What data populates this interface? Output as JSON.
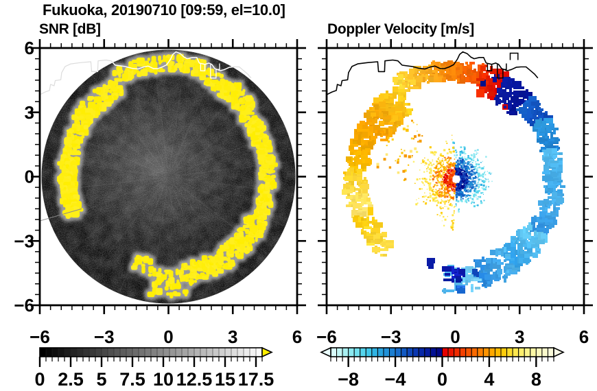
{
  "header": {
    "title": "Fukuoka, 20190710 [09:59, el=10.0]"
  },
  "panels": [
    {
      "key": "snr",
      "subtitle": "SNR [dB]"
    },
    {
      "key": "vel",
      "subtitle": "Doppler Velocity [m/s]"
    }
  ],
  "axes": {
    "range": [
      -6,
      6
    ],
    "major_ticks": [
      -6,
      -3,
      0,
      3,
      6
    ],
    "major_labels": [
      "−6",
      "−3",
      "0",
      "3",
      "6"
    ],
    "minor_step": 0.5
  },
  "chart_data": [
    {
      "type": "heatmap",
      "kind": "radar_ppi_snr",
      "title": "SNR [dB]",
      "site": "Fukuoka",
      "date": "20190710",
      "time": "09:59",
      "elevation_deg": 10.0,
      "axis_range_km": [
        -6,
        6
      ],
      "scan_radius": 5.92,
      "background_color": "#000000",
      "echo_color": "#ffee00",
      "colorbar": {
        "min": 0,
        "max": 18,
        "cell_step": 0.5,
        "tick_values": [
          0,
          2.5,
          5,
          7.5,
          10,
          12.5,
          15,
          17.5
        ],
        "tick_labels": [
          "0",
          "2.5",
          "5",
          "7.5",
          "10",
          "12.5",
          "15",
          "17.5"
        ],
        "gradient": [
          "#000000",
          "#fafafa"
        ],
        "over_color": "#ffee00"
      },
      "ring_segments": [
        {
          "a0": 150,
          "a1": 203,
          "r0": 4.35,
          "r1": 5.05,
          "d": 1.15
        },
        {
          "a0": 118,
          "a1": 150,
          "r0": 4.4,
          "r1": 5.25,
          "d": 1.0
        },
        {
          "a0": 72,
          "a1": 118,
          "r0": 4.95,
          "r1": 5.6,
          "d": 0.85
        },
        {
          "a0": 40,
          "a1": 72,
          "r0": 4.5,
          "r1": 5.35,
          "d": 0.95
        },
        {
          "a0": -26,
          "a1": 40,
          "r0": 4.3,
          "r1": 4.95,
          "d": 1.1
        },
        {
          "a0": -80,
          "a1": -26,
          "r0": 4.15,
          "r1": 5.05,
          "d": 1.2
        },
        {
          "a0": -101,
          "a1": -80,
          "r0": 4.35,
          "r1": 5.6,
          "d": 0.8
        },
        {
          "a0": -112,
          "a1": -101,
          "r0": 3.95,
          "r1": 4.55,
          "d": 0.45
        }
      ],
      "artifact_ray": {
        "x1": -5.95,
        "y1": -2.05,
        "x2": -4.05,
        "y2": -1.5
      }
    },
    {
      "type": "heatmap",
      "kind": "radar_ppi_velocity",
      "title": "Doppler Velocity [m/s]",
      "axis_range_km": [
        -6,
        6
      ],
      "colorbar": {
        "min": -9.5,
        "max": 9.5,
        "cell_step": 0.5,
        "tick_values": [
          -8,
          -4,
          0,
          4,
          8
        ],
        "tick_labels": [
          "−8",
          "−4",
          "0",
          "4",
          "8"
        ],
        "under_color": "#eafdfd",
        "over_color": "#fcfce8",
        "colors": [
          "#d8fbf9",
          "#c2f6f5",
          "#a8f0f2",
          "#8ce9f0",
          "#71e0ee",
          "#55d4ec",
          "#3fc6e9",
          "#30b4e4",
          "#28a3de",
          "#2191d8",
          "#1b7ed1",
          "#166bca",
          "#1259c2",
          "#0e47ba",
          "#0a37b1",
          "#0728a8",
          "#051c9e",
          "#031193",
          "#020887",
          "#e60000",
          "#eb1600",
          "#f02b00",
          "#f44000",
          "#f75500",
          "#fa6a00",
          "#fc7f00",
          "#fd9300",
          "#fea700",
          "#feba00",
          "#fecc0b",
          "#fedd2b",
          "#fee84d",
          "#fdef6d",
          "#fcf48b",
          "#fbf7a5",
          "#fbf9bc",
          "#fbfacd",
          "#fbfbdb"
        ]
      },
      "ring_segments": [
        {
          "a0": 95,
          "a1": 122,
          "r0": 4.55,
          "r1": 5.35,
          "d": 1.25,
          "c0": "#f8880a",
          "c1": "#ffdb38"
        },
        {
          "a0": 76,
          "a1": 95,
          "r0": 4.5,
          "r1": 5.3,
          "d": 1.3,
          "c0": "#f24b00",
          "c1": "#f8880a"
        },
        {
          "a0": 63,
          "a1": 76,
          "r0": 4.05,
          "r1": 5.35,
          "d": 1.6,
          "c0": "#dc0000",
          "c1": "#f03000",
          "spk": "#041193"
        },
        {
          "a0": 47,
          "a1": 63,
          "r0": 3.95,
          "r1": 5.3,
          "d": 1.6,
          "c0": "#041193",
          "c1": "#0a1ba6",
          "spk": "#dc0000"
        },
        {
          "a0": 33,
          "a1": 47,
          "r0": 4.2,
          "r1": 5.2,
          "d": 1.3,
          "c0": "#0e47ba",
          "c1": "#1766cf"
        },
        {
          "a0": 16,
          "a1": 33,
          "r0": 4.3,
          "r1": 5.15,
          "d": 1.3,
          "c0": "#1b7ed1",
          "c1": "#2e9ade"
        },
        {
          "a0": -10,
          "a1": 16,
          "r0": 4.25,
          "r1": 5.0,
          "d": 1.35,
          "c0": "#3aa4e6",
          "c1": "#55bdf0"
        },
        {
          "a0": -34,
          "a1": -10,
          "r0": 4.2,
          "r1": 5.05,
          "d": 1.25,
          "c0": "#2e90e0",
          "c1": "#4fb6ee"
        },
        {
          "a0": -56,
          "a1": -34,
          "r0": 3.95,
          "r1": 5.25,
          "d": 1.3,
          "c0": "#2f9fe8",
          "c1": "#66ccf5"
        },
        {
          "a0": -77,
          "a1": -56,
          "r0": 4.0,
          "r1": 5.3,
          "d": 1.15,
          "c0": "#2585dd",
          "c1": "#54baee"
        },
        {
          "a0": -96,
          "a1": -77,
          "r0": 4.3,
          "r1": 5.35,
          "d": 0.7,
          "c0": "#49b2ec",
          "c1": "#7fd4f7"
        },
        {
          "a0": 122,
          "a1": 152,
          "r0": 3.6,
          "r1": 5.1,
          "d": 1.35,
          "c0": "#ffd21e",
          "c1": "#f59b00"
        },
        {
          "a0": 152,
          "a1": 177,
          "r0": 4.15,
          "r1": 5.1,
          "d": 1.3,
          "c0": "#f5a000",
          "c1": "#fcc200"
        },
        {
          "a0": 177,
          "a1": 203,
          "r0": 4.2,
          "r1": 5.15,
          "d": 1.25,
          "c0": "#ffd21e",
          "c1": "#ffe878"
        },
        {
          "a0": 203,
          "a1": 228,
          "r0": 4.25,
          "r1": 5.05,
          "d": 0.9,
          "c0": "#fecc0b",
          "c1": "#ffe14d"
        }
      ],
      "inner_scatter": {
        "a0": 125,
        "a1": 185,
        "r0": 2.2,
        "r1": 3.7,
        "n": 45,
        "colors": [
          "#fcc200",
          "#ffd21e",
          "#f59b00",
          "#ffe878"
        ]
      },
      "center_cluster": {
        "cx": 0.05,
        "cy": -0.12,
        "hole_r": 0.18,
        "rays": 76,
        "n": 1500,
        "warm": {
          "a0": 95,
          "a1": 268,
          "rmax": 2.25,
          "bands": [
            [
              0.6,
              [
                "#e60000",
                "#f24000",
                "#fa6a00"
              ]
            ],
            [
              1.15,
              [
                "#fa6a00",
                "#fd9300",
                "#feba00",
                "#fecc0b"
              ]
            ],
            [
              9,
              [
                "#fecc0b",
                "#fee84d",
                "#fdef6d"
              ]
            ]
          ]
        },
        "cool": {
          "rmax": 1.65,
          "bands": [
            [
              0.55,
              [
                "#020887",
                "#0a37b1",
                "#1245c0"
              ]
            ],
            [
              1.0,
              [
                "#1259c2",
                "#1b7ed1",
                "#2191d8"
              ]
            ],
            [
              9,
              [
                "#30b4e4",
                "#55d4ec",
                "#71e0ee",
                "#8ce9f0"
              ]
            ]
          ]
        }
      },
      "blobs": [
        {
          "x": -0.05,
          "y": -4.52,
          "w": 0.85,
          "h": 0.55,
          "n": 22,
          "colors": [
            "#0a16a8",
            "#1322cf",
            "#051c9e"
          ]
        },
        {
          "x": 0.2,
          "y": -5.25,
          "w": 0.3,
          "h": 0.3,
          "n": 6,
          "colors": [
            "#2979f0",
            "#1766cf"
          ]
        },
        {
          "x": -1.15,
          "y": -4.05,
          "w": 0.22,
          "h": 0.22,
          "n": 4,
          "colors": [
            "#0a1ba6"
          ]
        },
        {
          "x": 0.95,
          "y": -4.5,
          "w": 0.3,
          "h": 0.3,
          "n": 5,
          "colors": [
            "#0e47ba",
            "#2585dd"
          ]
        }
      ]
    }
  ],
  "coastline": {
    "main": [
      [
        -6.05,
        3.8
      ],
      [
        -5.75,
        3.95
      ],
      [
        -5.55,
        4.02
      ],
      [
        -5.5,
        4.3
      ],
      [
        -5.33,
        4.24
      ],
      [
        -5.28,
        4.48
      ],
      [
        -5.02,
        4.52
      ],
      [
        -4.98,
        4.85
      ],
      [
        -4.82,
        5.14
      ],
      [
        -4.55,
        5.26
      ],
      [
        -4.1,
        5.32
      ],
      [
        -3.62,
        5.36
      ],
      [
        -3.58,
        4.9
      ],
      [
        -3.3,
        4.9
      ],
      [
        -3.28,
        5.4
      ],
      [
        -2.92,
        5.44
      ],
      [
        -2.68,
        5.4
      ],
      [
        -2.48,
        5.2
      ],
      [
        -2.02,
        5.14
      ],
      [
        -1.72,
        5.06
      ],
      [
        -1.42,
        5.02
      ],
      [
        -1.15,
        5.12
      ],
      [
        -0.95,
        5.16
      ],
      [
        -0.7,
        5.04
      ],
      [
        -0.5,
        5.04
      ],
      [
        -0.28,
        5.12
      ],
      [
        -0.08,
        5.22
      ],
      [
        0.1,
        5.48
      ],
      [
        0.2,
        5.7
      ],
      [
        0.35,
        5.82
      ],
      [
        0.55,
        5.74
      ],
      [
        0.72,
        5.58
      ],
      [
        0.88,
        5.5
      ],
      [
        1.12,
        5.56
      ],
      [
        1.32,
        5.56
      ],
      [
        1.44,
        5.3
      ],
      [
        1.7,
        5.24
      ],
      [
        1.88,
        5.3
      ],
      [
        2.02,
        5.24
      ],
      [
        2.16,
        5.04
      ],
      [
        2.42,
        4.94
      ],
      [
        2.62,
        5.0
      ],
      [
        2.84,
        5.1
      ],
      [
        3.06,
        5.12
      ],
      [
        3.3,
        5.12
      ],
      [
        3.5,
        4.95
      ],
      [
        3.7,
        4.78
      ],
      [
        3.85,
        4.6
      ]
    ],
    "piers": [
      [
        [
          1.5,
          5.26
        ],
        [
          1.5,
          4.94
        ],
        [
          1.7,
          4.94
        ],
        [
          1.7,
          5.26
        ]
      ],
      [
        [
          1.96,
          5.24
        ],
        [
          1.96,
          4.6
        ],
        [
          2.22,
          4.6
        ],
        [
          2.22,
          5.0
        ],
        [
          2.38,
          5.0
        ],
        [
          2.38,
          5.28
        ]
      ],
      [
        [
          2.56,
          5.44
        ],
        [
          2.56,
          5.76
        ],
        [
          2.92,
          5.76
        ],
        [
          2.92,
          5.44
        ]
      ]
    ]
  }
}
